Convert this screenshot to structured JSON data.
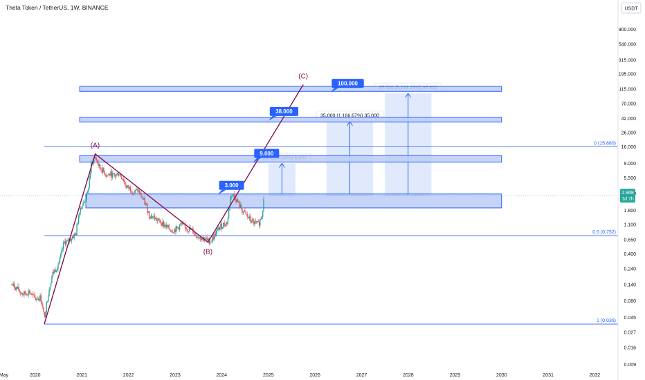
{
  "header": {
    "title": "Theta Token / TetherUS, 1W, BINANCE",
    "currency": "USDT"
  },
  "colors": {
    "up": "#26a69a",
    "down": "#ef5350",
    "zone_fill": "#bbcdf7",
    "zone_border": "#2962ff",
    "wave_line": "#880e4f",
    "fib_line": "#2962ff",
    "callout": "#2962ff",
    "projection_fill": "#dce6fd",
    "price_badge": "#26a69a"
  },
  "chart_data": {
    "type": "candlestick",
    "scale": "log",
    "ylim": [
      0.007,
      1400
    ],
    "xlim": [
      "2019-04-01",
      "2032-07-01"
    ],
    "x_tick_labels": [
      "May",
      "2020",
      "2021",
      "2022",
      "2023",
      "2024",
      "2025",
      "2026",
      "2027",
      "2028",
      "2029",
      "2030",
      "2031",
      "2032"
    ],
    "y_tick_labels": [
      "900.000",
      "540.000",
      "315.000",
      "195.000",
      "115.000",
      "70.000",
      "42.000",
      "26.000",
      "16.000",
      "9.000",
      "5.500",
      "3.200",
      "1.800",
      "1.100",
      "0.650",
      "0.400",
      "0.240",
      "0.140",
      "0.080",
      "0.045",
      "0.027",
      "0.016",
      "0.009"
    ],
    "current_price": "2.968",
    "countdown": "1d 7h",
    "price_series": {
      "x": [
        "2019-07-01",
        "2019-08-15",
        "2019-10-01",
        "2019-11-15",
        "2020-01-01",
        "2020-02-15",
        "2020-03-13",
        "2020-04-15",
        "2020-05-15",
        "2020-06-15",
        "2020-07-15",
        "2020-08-15",
        "2020-09-15",
        "2020-10-15",
        "2020-11-15",
        "2020-12-15",
        "2021-01-15",
        "2021-02-15",
        "2021-03-15",
        "2021-04-15",
        "2021-05-15",
        "2021-06-15",
        "2021-07-15",
        "2021-08-15",
        "2021-09-15",
        "2021-10-15",
        "2021-11-15",
        "2021-12-15",
        "2022-01-15",
        "2022-02-15",
        "2022-03-15",
        "2022-04-15",
        "2022-05-15",
        "2022-06-15",
        "2022-07-15",
        "2022-08-15",
        "2022-09-15",
        "2022-10-15",
        "2022-11-15",
        "2022-12-15",
        "2023-01-15",
        "2023-02-15",
        "2023-03-15",
        "2023-04-15",
        "2023-05-15",
        "2023-06-15",
        "2023-07-15",
        "2023-08-15",
        "2023-09-15",
        "2023-10-15",
        "2023-11-15",
        "2023-12-15",
        "2024-01-15",
        "2024-02-15",
        "2024-03-15",
        "2024-04-15",
        "2024-05-15",
        "2024-06-15",
        "2024-07-15",
        "2024-08-15",
        "2024-09-15",
        "2024-10-15",
        "2024-11-15",
        "2024-11-25"
      ],
      "close": [
        0.14,
        0.12,
        0.1,
        0.11,
        0.085,
        0.09,
        0.045,
        0.11,
        0.2,
        0.25,
        0.33,
        0.6,
        0.6,
        0.72,
        0.8,
        1.9,
        2.3,
        3.2,
        8.5,
        11.5,
        8.0,
        7.0,
        6.0,
        6.2,
        5.8,
        6.5,
        5.5,
        4.0,
        3.8,
        3.3,
        3.6,
        2.8,
        2.2,
        1.5,
        1.45,
        1.25,
        1.2,
        1.05,
        0.95,
        0.9,
        0.95,
        1.1,
        1.0,
        0.95,
        0.9,
        0.75,
        0.72,
        0.68,
        0.62,
        0.65,
        0.8,
        1.0,
        1.1,
        1.2,
        3.2,
        2.8,
        2.2,
        1.7,
        1.5,
        1.25,
        1.15,
        1.1,
        1.6,
        2.968
      ]
    },
    "wave_labels": [
      {
        "label": "(A)",
        "x": "2021-04-15",
        "price": 12.5
      },
      {
        "label": "(B)",
        "x": "2023-09-15",
        "price": 0.6
      },
      {
        "label": "(C)",
        "x": "2025-10-01",
        "price": 135
      }
    ],
    "wave_path": [
      {
        "x": "2020-03-13",
        "price": 0.036
      },
      {
        "x": "2021-04-15",
        "price": 12.5
      },
      {
        "x": "2023-09-15",
        "price": 0.6
      },
      {
        "x": "2025-10-01",
        "price": 135
      }
    ],
    "fib_levels": [
      {
        "label": "0 (15.880)",
        "price": 15.88,
        "x_start": "2020-03-13"
      },
      {
        "label": "0.5 (0.752)",
        "price": 0.752,
        "x_start": "2020-03-13"
      },
      {
        "label": "1 (0.036)",
        "price": 0.036,
        "x_start": "2020-03-13"
      }
    ],
    "zones": [
      {
        "low": 1.95,
        "high": 3.15,
        "x_start": "2021-02-01",
        "x_end": "2030-01-01"
      },
      {
        "low": 9.4,
        "high": 11.8,
        "x_start": "2020-12-15",
        "x_end": "2030-01-01"
      },
      {
        "low": 38.0,
        "high": 44.0,
        "x_start": "2020-12-15",
        "x_end": "2030-01-01"
      },
      {
        "low": 107.0,
        "high": 127.0,
        "x_start": "2020-12-15",
        "x_end": "2030-01-01"
      }
    ],
    "targets": [
      {
        "label": "3.000",
        "price": 3.0,
        "x": "2023-12-01"
      },
      {
        "label": "9.000",
        "price": 9.0,
        "x": "2024-09-01"
      },
      {
        "label": "38.000",
        "price": 38.0,
        "x": "2025-01-01"
      },
      {
        "label": "100.000",
        "price": 100.0,
        "x": "2026-05-01"
      }
    ],
    "projections": [
      {
        "label": "6.000 (200.00%) 6,000",
        "base": 3.0,
        "top": 9.0,
        "x_start": "2025-01-01",
        "x_end": "2025-08-01"
      },
      {
        "label": "35.000 (1,166.67%) 35,000",
        "base": 3.0,
        "top": 38.0,
        "x_start": "2026-04-01",
        "x_end": "2027-04-01"
      },
      {
        "label": "97.000 (3,233.33%) 97,000",
        "base": 3.0,
        "top": 100.0,
        "x_start": "2027-07-01",
        "x_end": "2028-07-01"
      }
    ]
  }
}
